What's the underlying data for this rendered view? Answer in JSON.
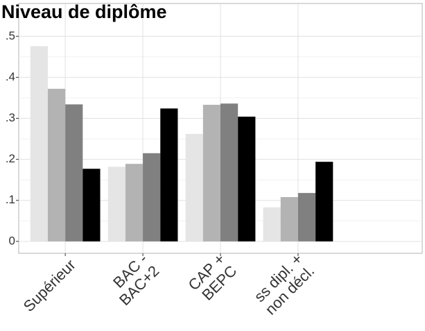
{
  "chart_data": {
    "type": "bar",
    "title": "Niveau de diplôme",
    "categories": [
      "Supérieur",
      "BAC -\nBAC+2",
      "CAP +\nBEPC",
      "ss dipl. +\nnon décl."
    ],
    "series": [
      {
        "color": "#e5e5e5",
        "values": [
          0.476,
          0.182,
          0.262,
          0.083
        ]
      },
      {
        "color": "#b3b3b3",
        "values": [
          0.372,
          0.189,
          0.333,
          0.108
        ]
      },
      {
        "color": "#808080",
        "values": [
          0.334,
          0.215,
          0.336,
          0.118
        ]
      },
      {
        "color": "#000000",
        "values": [
          0.177,
          0.324,
          0.304,
          0.194
        ]
      }
    ],
    "ylim": [
      -0.029,
      0.58
    ],
    "yticks": [
      0,
      {
        "value": 0.1,
        "label": ".1"
      },
      {
        "value": 0.2,
        "label": ".2"
      },
      {
        "value": 0.3,
        "label": ".3"
      },
      {
        "value": 0.4,
        "label": ".4"
      },
      {
        "value": 0.5,
        "label": ".5"
      }
    ],
    "grid": true
  }
}
